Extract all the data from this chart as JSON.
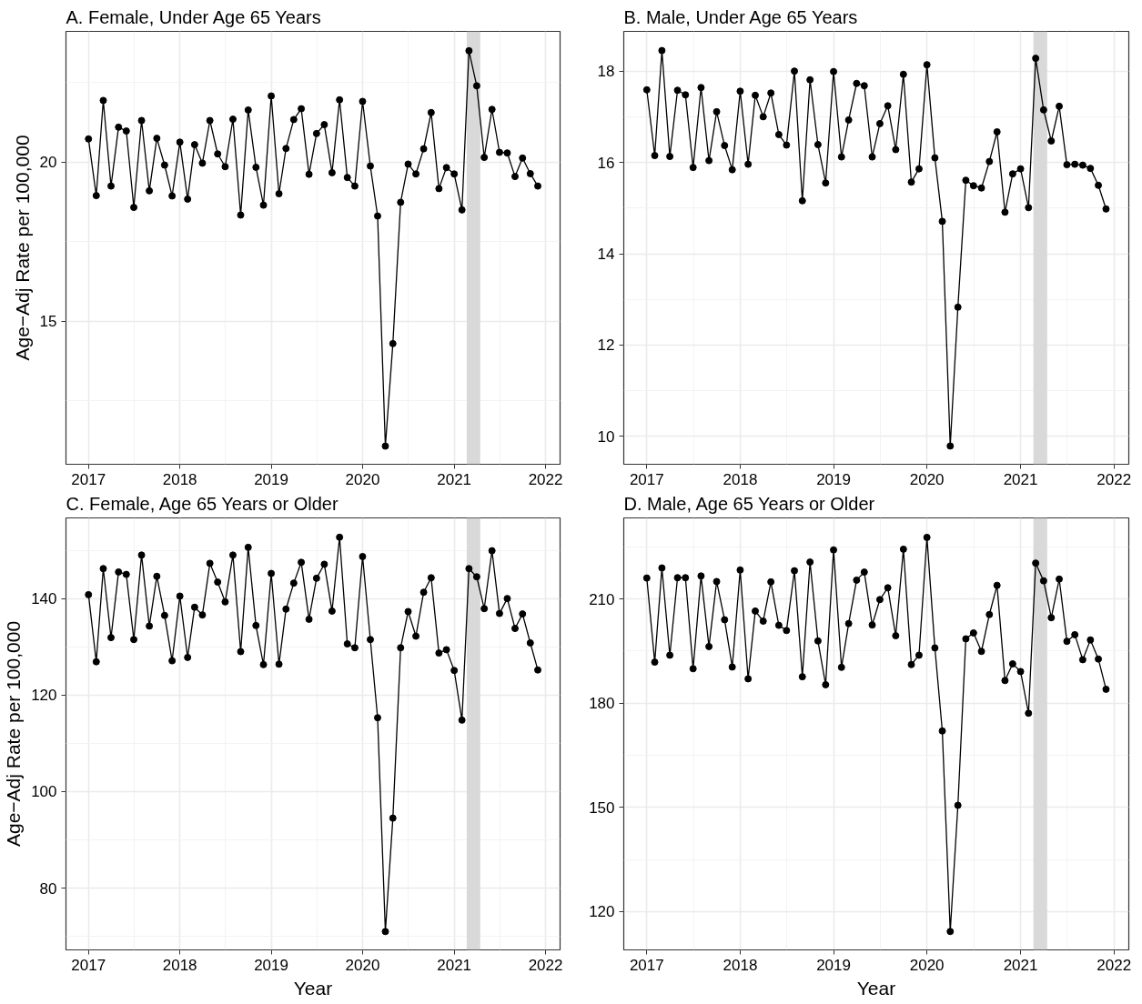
{
  "chart_data": [
    {
      "type": "line",
      "title": "A. Female, Under Age 65 Years",
      "ylabel": "Age−Adj Rate per 100,000",
      "color": "#000000",
      "marker": "circle",
      "grid": true,
      "x": [
        "2017-01",
        "2017-02",
        "2017-03",
        "2017-04",
        "2017-05",
        "2017-06",
        "2017-07",
        "2017-08",
        "2017-09",
        "2017-10",
        "2017-11",
        "2017-12",
        "2018-01",
        "2018-02",
        "2018-03",
        "2018-04",
        "2018-05",
        "2018-06",
        "2018-07",
        "2018-08",
        "2018-09",
        "2018-10",
        "2018-11",
        "2018-12",
        "2019-01",
        "2019-02",
        "2019-03",
        "2019-04",
        "2019-05",
        "2019-06",
        "2019-07",
        "2019-08",
        "2019-09",
        "2019-10",
        "2019-11",
        "2019-12",
        "2020-01",
        "2020-02",
        "2020-03",
        "2020-04",
        "2020-05",
        "2020-06",
        "2020-07",
        "2020-08",
        "2020-09",
        "2020-10",
        "2020-11",
        "2020-12",
        "2021-01",
        "2021-02",
        "2021-03",
        "2021-04",
        "2021-05",
        "2021-06",
        "2021-07",
        "2021-08",
        "2021-09",
        "2021-10",
        "2021-11",
        "2021-12"
      ],
      "values": [
        20.72,
        18.94,
        21.93,
        19.24,
        21.09,
        20.97,
        18.57,
        21.3,
        19.09,
        20.74,
        19.9,
        18.93,
        20.62,
        18.83,
        20.54,
        19.96,
        21.3,
        20.25,
        19.85,
        21.34,
        18.33,
        21.63,
        19.83,
        18.64,
        22.07,
        19.0,
        20.42,
        21.33,
        21.67,
        19.61,
        20.89,
        21.17,
        19.66,
        21.95,
        19.51,
        19.24,
        21.9,
        19.87,
        18.3,
        11.07,
        14.29,
        18.73,
        19.93,
        19.62,
        20.41,
        21.55,
        19.16,
        19.82,
        19.62,
        18.49,
        23.49,
        22.39,
        20.14,
        21.65,
        20.3,
        20.28,
        19.54,
        20.12,
        19.63,
        19.24
      ],
      "xlim": [
        "2016-10-03",
        "2022-02-28"
      ],
      "xticks": [
        "2017",
        "2018",
        "2019",
        "2020",
        "2021",
        "2022"
      ],
      "ylim": [
        10.5,
        24.1
      ],
      "yticks": [
        15,
        20
      ],
      "bands": [
        {
          "axis": "x",
          "from": "2021-02-20",
          "to": "2021-04-15",
          "color": "#d9d9d9"
        }
      ]
    },
    {
      "type": "line",
      "title": "B. Male, Under Age 65 Years",
      "color": "#000000",
      "marker": "circle",
      "grid": true,
      "x": [
        "2017-01",
        "2017-02",
        "2017-03",
        "2017-04",
        "2017-05",
        "2017-06",
        "2017-07",
        "2017-08",
        "2017-09",
        "2017-10",
        "2017-11",
        "2017-12",
        "2018-01",
        "2018-02",
        "2018-03",
        "2018-04",
        "2018-05",
        "2018-06",
        "2018-07",
        "2018-08",
        "2018-09",
        "2018-10",
        "2018-11",
        "2018-12",
        "2019-01",
        "2019-02",
        "2019-03",
        "2019-04",
        "2019-05",
        "2019-06",
        "2019-07",
        "2019-08",
        "2019-09",
        "2019-10",
        "2019-11",
        "2019-12",
        "2020-01",
        "2020-02",
        "2020-03",
        "2020-04",
        "2020-05",
        "2020-06",
        "2020-07",
        "2020-08",
        "2020-09",
        "2020-10",
        "2020-11",
        "2020-12",
        "2021-01",
        "2021-02",
        "2021-03",
        "2021-04",
        "2021-05",
        "2021-06",
        "2021-07",
        "2021-08",
        "2021-09",
        "2021-10",
        "2021-11",
        "2021-12"
      ],
      "values": [
        17.59,
        16.15,
        18.45,
        16.13,
        17.58,
        17.48,
        15.89,
        17.64,
        16.04,
        17.11,
        16.37,
        15.84,
        17.56,
        15.96,
        17.47,
        17.0,
        17.52,
        16.61,
        16.38,
        18.0,
        15.16,
        17.81,
        16.39,
        15.55,
        17.99,
        16.12,
        16.93,
        17.73,
        17.68,
        16.12,
        16.85,
        17.24,
        16.28,
        17.93,
        15.57,
        15.86,
        18.14,
        16.1,
        14.71,
        9.79,
        12.83,
        15.61,
        15.49,
        15.44,
        16.02,
        16.67,
        14.91,
        15.75,
        15.86,
        15.01,
        18.28,
        17.15,
        16.47,
        17.23,
        15.95,
        15.96,
        15.94,
        15.87,
        15.5,
        14.98
      ],
      "xlim": [
        "2016-10-03",
        "2022-02-28"
      ],
      "xticks": [
        "2017",
        "2018",
        "2019",
        "2020",
        "2021",
        "2022"
      ],
      "ylim": [
        9.39,
        18.87
      ],
      "yticks": [
        10,
        12,
        14,
        16,
        18
      ],
      "bands": [
        {
          "axis": "x",
          "from": "2021-02-20",
          "to": "2021-04-15",
          "color": "#d9d9d9"
        }
      ]
    },
    {
      "type": "line",
      "title": "C. Female, Age 65 Years or Older",
      "ylabel": "Age−Adj Rate per 100,000",
      "xlabel": "Year",
      "color": "#000000",
      "marker": "circle",
      "grid": true,
      "x": [
        "2017-01",
        "2017-02",
        "2017-03",
        "2017-04",
        "2017-05",
        "2017-06",
        "2017-07",
        "2017-08",
        "2017-09",
        "2017-10",
        "2017-11",
        "2017-12",
        "2018-01",
        "2018-02",
        "2018-03",
        "2018-04",
        "2018-05",
        "2018-06",
        "2018-07",
        "2018-08",
        "2018-09",
        "2018-10",
        "2018-11",
        "2018-12",
        "2019-01",
        "2019-02",
        "2019-03",
        "2019-04",
        "2019-05",
        "2019-06",
        "2019-07",
        "2019-08",
        "2019-09",
        "2019-10",
        "2019-11",
        "2019-12",
        "2020-01",
        "2020-02",
        "2020-03",
        "2020-04",
        "2020-05",
        "2020-06",
        "2020-07",
        "2020-08",
        "2020-09",
        "2020-10",
        "2020-11",
        "2020-12",
        "2021-01",
        "2021-02",
        "2021-03",
        "2021-04",
        "2021-05",
        "2021-06",
        "2021-07",
        "2021-08",
        "2021-09",
        "2021-10",
        "2021-11",
        "2021-12"
      ],
      "values": [
        140.8,
        126.9,
        146.2,
        131.9,
        145.5,
        145.0,
        131.5,
        149.0,
        134.3,
        144.6,
        136.5,
        127.1,
        140.5,
        127.8,
        138.2,
        136.6,
        147.3,
        143.4,
        139.3,
        149.0,
        129.0,
        150.6,
        134.4,
        126.3,
        145.2,
        126.4,
        137.8,
        143.2,
        147.5,
        135.7,
        144.2,
        147.1,
        137.4,
        152.7,
        130.6,
        129.8,
        148.7,
        131.5,
        115.3,
        71.0,
        94.5,
        129.8,
        137.3,
        132.2,
        141.3,
        144.3,
        128.7,
        129.4,
        125.1,
        114.8,
        146.2,
        144.5,
        137.9,
        149.9,
        136.9,
        140.0,
        133.8,
        136.8,
        130.8,
        125.2
      ],
      "xlim": [
        "2016-10-03",
        "2022-02-28"
      ],
      "xticks": [
        "2017",
        "2018",
        "2019",
        "2020",
        "2021",
        "2022"
      ],
      "ylim": [
        67.2,
        156.7
      ],
      "yticks": [
        80,
        100,
        120,
        140
      ],
      "bands": [
        {
          "axis": "x",
          "from": "2021-02-20",
          "to": "2021-04-15",
          "color": "#d9d9d9"
        }
      ]
    },
    {
      "type": "line",
      "title": "D. Male, Age 65 Years or Older",
      "xlabel": "Year",
      "color": "#000000",
      "marker": "circle",
      "grid": true,
      "x": [
        "2017-01",
        "2017-02",
        "2017-03",
        "2017-04",
        "2017-05",
        "2017-06",
        "2017-07",
        "2017-08",
        "2017-09",
        "2017-10",
        "2017-11",
        "2017-12",
        "2018-01",
        "2018-02",
        "2018-03",
        "2018-04",
        "2018-05",
        "2018-06",
        "2018-07",
        "2018-08",
        "2018-09",
        "2018-10",
        "2018-11",
        "2018-12",
        "2019-01",
        "2019-02",
        "2019-03",
        "2019-04",
        "2019-05",
        "2019-06",
        "2019-07",
        "2019-08",
        "2019-09",
        "2019-10",
        "2019-11",
        "2019-12",
        "2020-01",
        "2020-02",
        "2020-03",
        "2020-04",
        "2020-05",
        "2020-06",
        "2020-07",
        "2020-08",
        "2020-09",
        "2020-10",
        "2020-11",
        "2020-12",
        "2021-01",
        "2021-02",
        "2021-03",
        "2021-04",
        "2021-05",
        "2021-06",
        "2021-07",
        "2021-08",
        "2021-09",
        "2021-10",
        "2021-11",
        "2021-12"
      ],
      "values": [
        216.0,
        191.8,
        218.9,
        193.8,
        216.1,
        216.1,
        189.9,
        216.6,
        196.3,
        215.0,
        204.0,
        190.4,
        218.3,
        187.0,
        206.5,
        203.6,
        214.9,
        202.4,
        200.9,
        218.1,
        187.6,
        220.6,
        197.9,
        185.3,
        224.1,
        190.3,
        202.9,
        215.4,
        217.7,
        202.5,
        209.8,
        213.2,
        199.4,
        224.3,
        191.1,
        193.8,
        227.7,
        195.9,
        172.0,
        114.3,
        150.6,
        198.5,
        200.2,
        194.9,
        205.5,
        213.9,
        186.5,
        191.3,
        189.1,
        177.1,
        220.3,
        215.2,
        204.6,
        215.7,
        197.8,
        199.7,
        192.5,
        198.2,
        192.7,
        184.0
      ],
      "xlim": [
        "2016-10-03",
        "2022-02-28"
      ],
      "xticks": [
        "2017",
        "2018",
        "2019",
        "2020",
        "2021",
        "2022"
      ],
      "ylim": [
        109.0,
        233.3
      ],
      "yticks": [
        120,
        150,
        180,
        210
      ],
      "bands": [
        {
          "axis": "x",
          "from": "2021-02-20",
          "to": "2021-04-15",
          "color": "#d9d9d9"
        }
      ]
    }
  ]
}
